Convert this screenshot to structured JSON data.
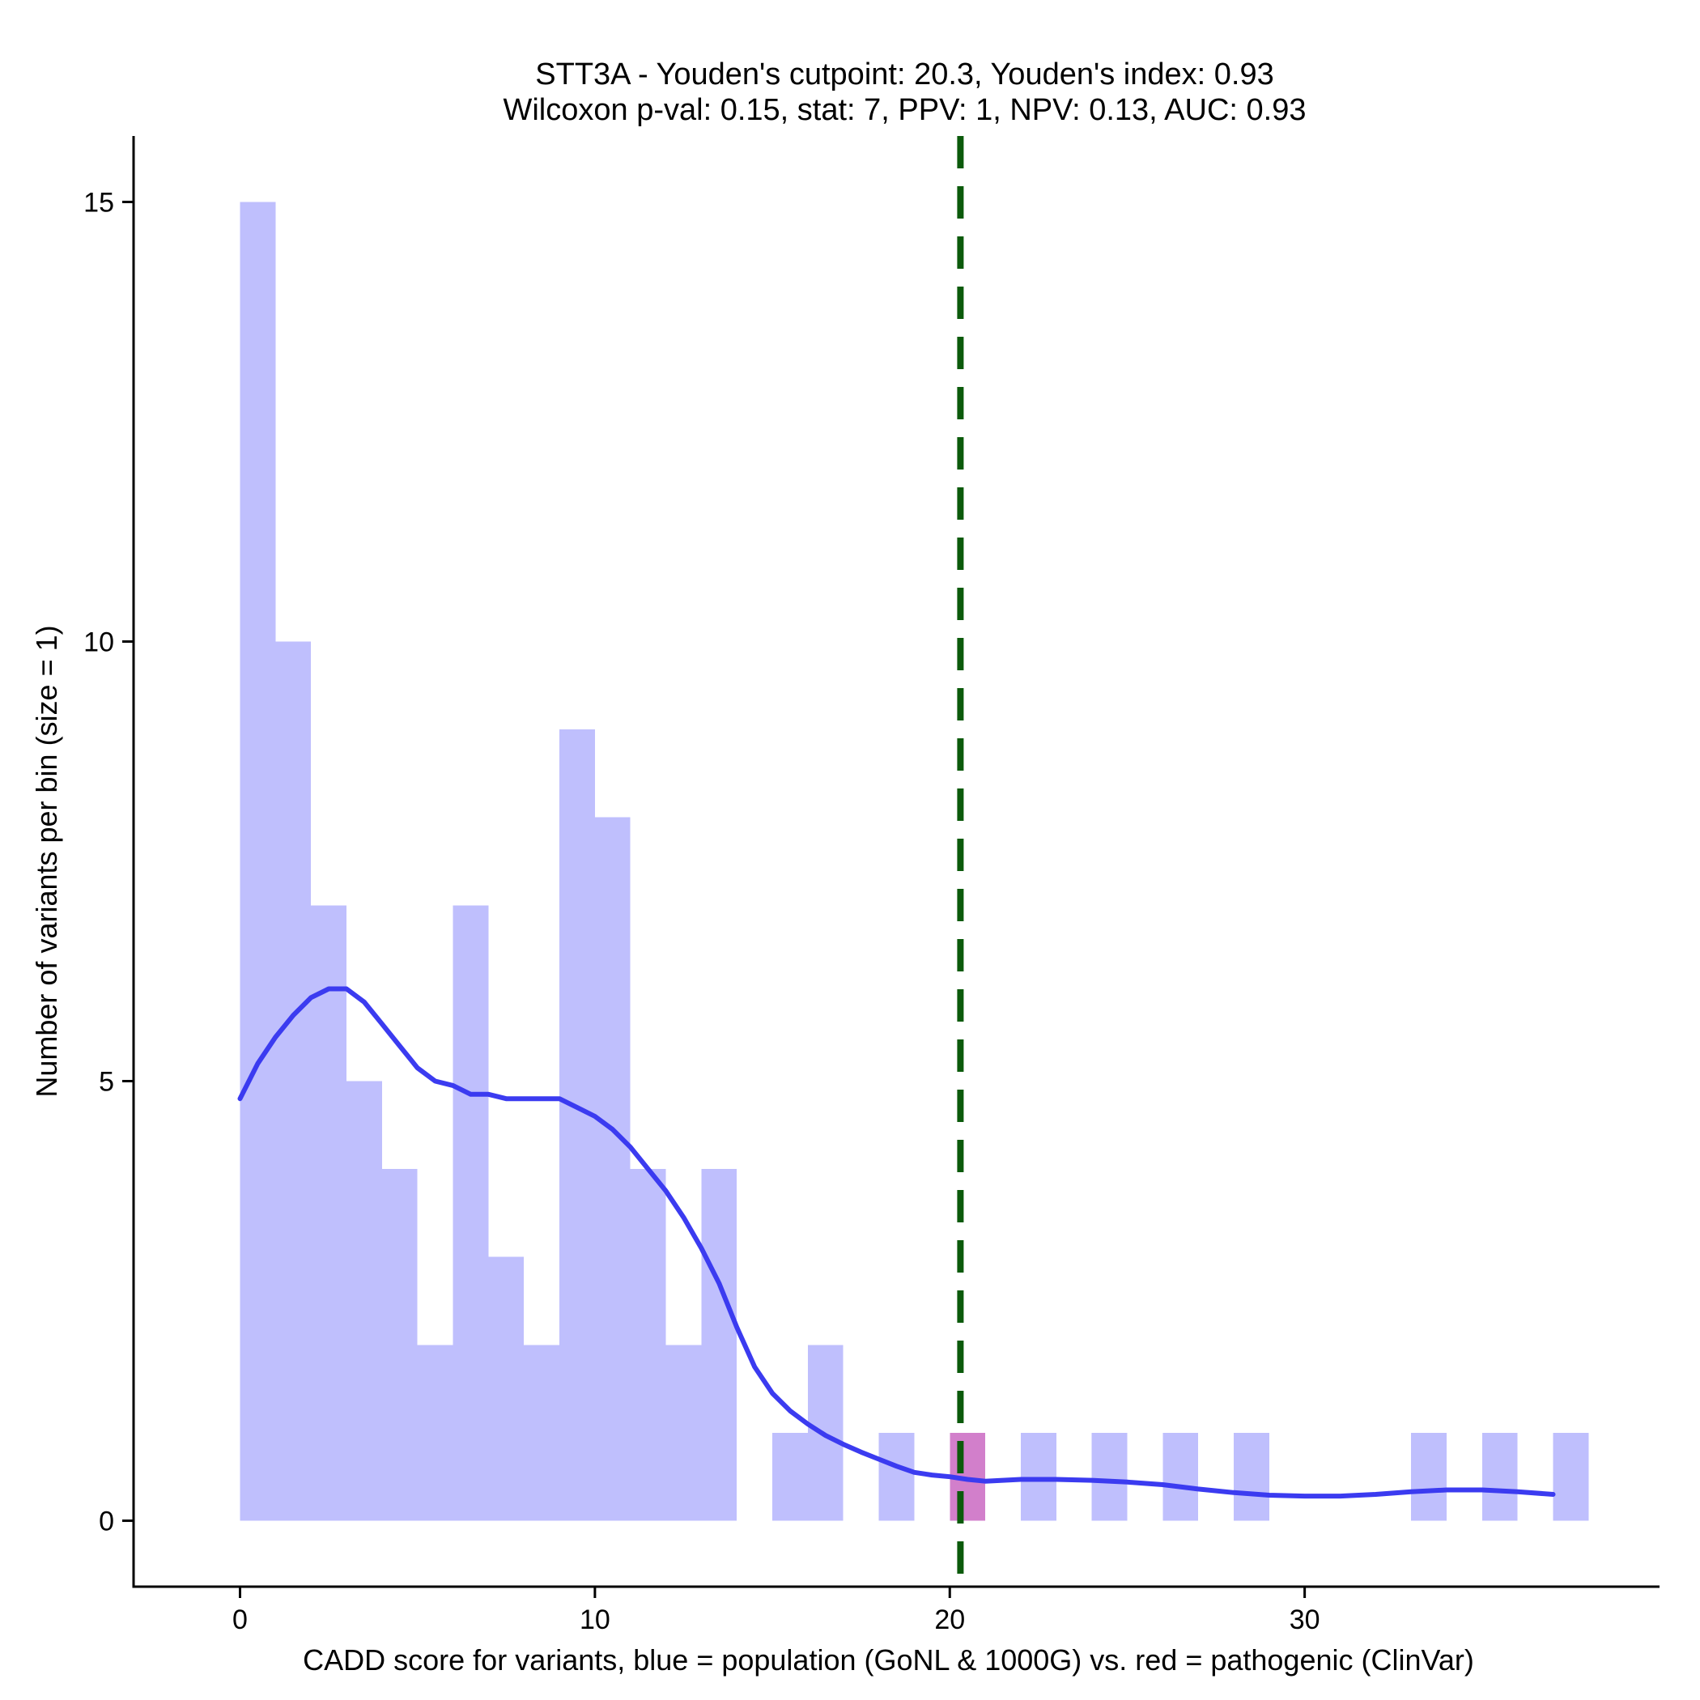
{
  "chart_data": {
    "type": "bar",
    "title_line1": "STT3A - Youden's cutpoint: 20.3, Youden's index: 0.93",
    "title_line2": "Wilcoxon p-val: 0.15, stat: 7, PPV: 1, NPV: 0.13, AUC: 0.93",
    "xlabel": "CADD score for variants, blue = population (GoNL & 1000G) vs. red = pathogenic (ClinVar)",
    "ylabel": "Number of variants per bin (size = 1)",
    "xlim": [
      -3,
      40
    ],
    "ylim": [
      -0.75,
      15.75
    ],
    "x_ticks": [
      0,
      10,
      20,
      30
    ],
    "y_ticks": [
      0,
      5,
      10,
      15
    ],
    "bin_width": 1,
    "series": [
      {
        "name": "population (GoNL & 1000G)",
        "color": "#bfbffd",
        "bins": [
          {
            "start": 0,
            "count": 15
          },
          {
            "start": 1,
            "count": 10
          },
          {
            "start": 2,
            "count": 7
          },
          {
            "start": 3,
            "count": 5
          },
          {
            "start": 4,
            "count": 4
          },
          {
            "start": 5,
            "count": 2
          },
          {
            "start": 6,
            "count": 7
          },
          {
            "start": 7,
            "count": 3
          },
          {
            "start": 8,
            "count": 2
          },
          {
            "start": 9,
            "count": 9
          },
          {
            "start": 10,
            "count": 8
          },
          {
            "start": 11,
            "count": 4
          },
          {
            "start": 12,
            "count": 2
          },
          {
            "start": 13,
            "count": 4
          },
          {
            "start": 15,
            "count": 1
          },
          {
            "start": 16,
            "count": 2
          },
          {
            "start": 18,
            "count": 1
          },
          {
            "start": 20,
            "count": 1
          },
          {
            "start": 22,
            "count": 1
          },
          {
            "start": 24,
            "count": 1
          },
          {
            "start": 26,
            "count": 1
          },
          {
            "start": 28,
            "count": 1
          },
          {
            "start": 33,
            "count": 1
          },
          {
            "start": 35,
            "count": 1
          },
          {
            "start": 37,
            "count": 1
          }
        ]
      },
      {
        "name": "pathogenic (ClinVar)",
        "color": "#d27fcb",
        "bins": [
          {
            "start": 20,
            "count": 1
          }
        ]
      }
    ],
    "density_line": {
      "name": "population density (scaled)",
      "color": "#3b3bf0",
      "x": [
        0,
        0.5,
        1,
        1.5,
        2,
        2.5,
        3,
        3.5,
        4,
        4.5,
        5,
        5.5,
        6,
        6.5,
        7,
        7.5,
        8,
        8.5,
        9,
        9.5,
        10,
        10.5,
        11,
        11.5,
        12,
        12.5,
        13,
        13.5,
        14,
        14.5,
        15,
        15.5,
        16,
        16.5,
        17,
        17.5,
        18,
        18.5,
        19,
        19.5,
        20,
        20.5,
        21,
        22,
        23,
        24,
        25,
        26,
        27,
        28,
        29,
        30,
        31,
        32,
        33,
        34,
        35,
        36,
        37
      ],
      "y": [
        4.8,
        5.2,
        5.5,
        5.75,
        5.95,
        6.05,
        6.05,
        5.9,
        5.65,
        5.4,
        5.15,
        5.0,
        4.95,
        4.85,
        4.85,
        4.8,
        4.8,
        4.8,
        4.8,
        4.7,
        4.6,
        4.45,
        4.25,
        4.0,
        3.75,
        3.45,
        3.1,
        2.7,
        2.2,
        1.75,
        1.45,
        1.25,
        1.1,
        0.97,
        0.87,
        0.78,
        0.7,
        0.62,
        0.55,
        0.52,
        0.5,
        0.47,
        0.45,
        0.47,
        0.47,
        0.46,
        0.44,
        0.41,
        0.36,
        0.32,
        0.29,
        0.28,
        0.28,
        0.3,
        0.33,
        0.35,
        0.35,
        0.33,
        0.3
      ]
    },
    "cutpoint_line": {
      "x": 20.3,
      "color": "#0b5a0b",
      "style": "dashed"
    },
    "grid": false
  }
}
